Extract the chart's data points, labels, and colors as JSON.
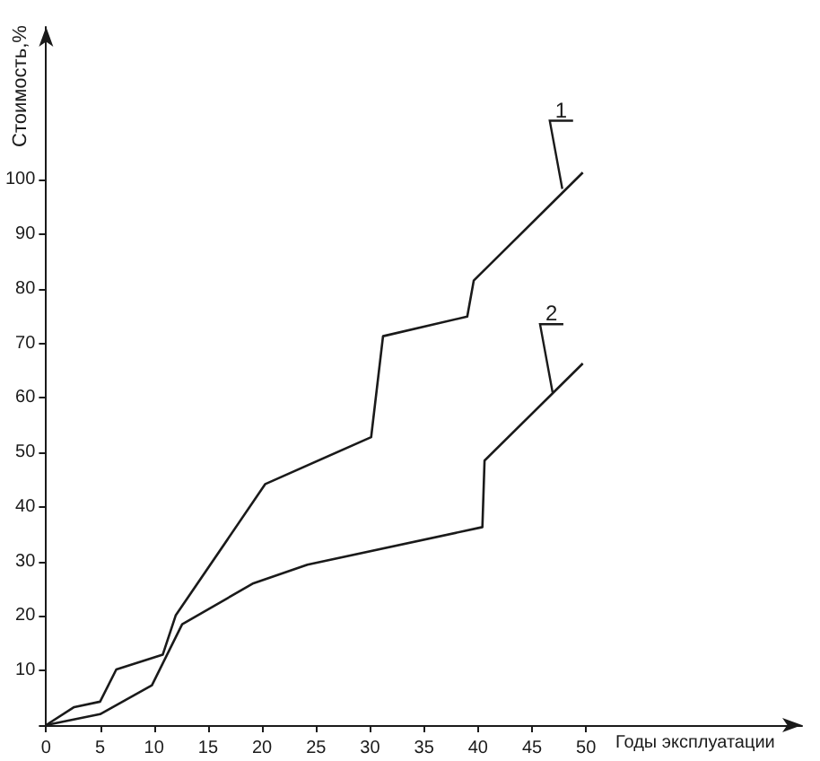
{
  "chart_data": {
    "type": "line",
    "xlabel": "Годы эксплуатации",
    "ylabel": "Стоимость,%",
    "xlim": [
      0,
      70
    ],
    "ylim": [
      0,
      128
    ],
    "xticks": [
      0,
      5,
      10,
      15,
      20,
      25,
      30,
      35,
      40,
      45,
      50
    ],
    "yticks": [
      {
        "value": 0,
        "label": null
      },
      10,
      20,
      30,
      40,
      50,
      60,
      70,
      80,
      90,
      100
    ],
    "series": [
      {
        "color": "#1a1a1a",
        "x": [
          0,
          2.6,
          5,
          6.5,
          10.8,
          12,
          20.3,
          30.1,
          31.2,
          39,
          39.6,
          49.7
        ],
        "values": [
          0,
          3.3,
          4.3,
          10.2,
          12.9,
          20.1,
          44.2,
          52.8,
          71.3,
          74.9,
          81.5,
          101.3
        ]
      },
      {
        "color": "#1a1a1a",
        "x": [
          0,
          5,
          9.8,
          12.6,
          19.2,
          24.2,
          40.4,
          40.6,
          49.7
        ],
        "values": [
          0,
          2,
          7.3,
          18.5,
          26,
          29.4,
          36.3,
          48.5,
          66.3
        ]
      }
    ],
    "annotations": [
      {
        "text": "1",
        "x": 47.8,
        "y": 98.3
      },
      {
        "text": "2",
        "x": 46.9,
        "y": 61
      }
    ],
    "grid": false,
    "marker": "none",
    "line_style": "solid"
  }
}
